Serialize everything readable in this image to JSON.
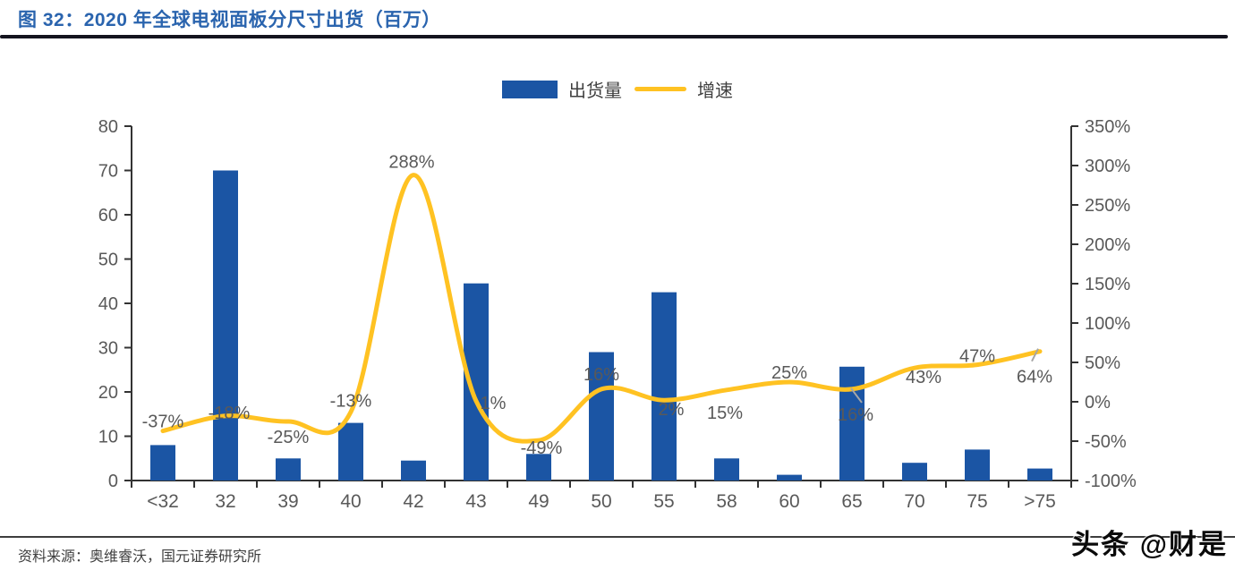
{
  "header": {
    "title": "图 32：2020 年全球电视面板分尺寸出货（百万）"
  },
  "legend": [
    {
      "label": "出货量",
      "type": "bar",
      "color": "#1B55A4"
    },
    {
      "label": "增速",
      "type": "line",
      "color": "#FFC222"
    }
  ],
  "colors": {
    "title": "#2A64AE",
    "bar": "#1B55A4",
    "line": "#FFC222",
    "axis": "#333333",
    "tick_text": "#595959",
    "label_text": "#595959",
    "leader": "#a6a6a6"
  },
  "chart_data": {
    "type": "bar+line",
    "title": "图 32：2020 年全球电视面板分尺寸出货（百万）",
    "categories": [
      "<32",
      "32",
      "39",
      "40",
      "42",
      "43",
      "49",
      "50",
      "55",
      "58",
      "60",
      "65",
      "70",
      "75",
      ">75"
    ],
    "series": [
      {
        "name": "出货量",
        "type": "bar",
        "axis": "left",
        "values": [
          8,
          70,
          5,
          13,
          4.5,
          44.5,
          6,
          29,
          42.5,
          5,
          1.3,
          25.7,
          4,
          7,
          2.7
        ]
      },
      {
        "name": "增速",
        "type": "line",
        "axis": "right",
        "unit": "%",
        "values": [
          -37,
          -18,
          -25,
          -13,
          288,
          1,
          -49,
          16,
          2,
          15,
          25,
          16,
          43,
          47,
          64
        ],
        "point_labels": [
          "-37%",
          "-18%",
          "-25%",
          "-13%",
          "288%",
          "1%",
          "-49%",
          "16%",
          "2%",
          "15%",
          "25%",
          "16%",
          "43%",
          "47%",
          "64%"
        ]
      }
    ],
    "left_axis": {
      "min": 0,
      "max": 80,
      "step": 10,
      "tick_labels": [
        "0",
        "10",
        "20",
        "30",
        "40",
        "50",
        "60",
        "70",
        "80"
      ]
    },
    "right_axis": {
      "min": -100,
      "max": 350,
      "step": 50,
      "tick_labels": [
        "-100%",
        "-50%",
        "0%",
        "50%",
        "100%",
        "150%",
        "200%",
        "250%",
        "300%",
        "350%"
      ]
    },
    "grid": "off",
    "legend_position": "top-center"
  },
  "footer": {
    "source": "资料来源：奥维睿沃，国元证券研究所",
    "watermark": "头条 @财是"
  }
}
